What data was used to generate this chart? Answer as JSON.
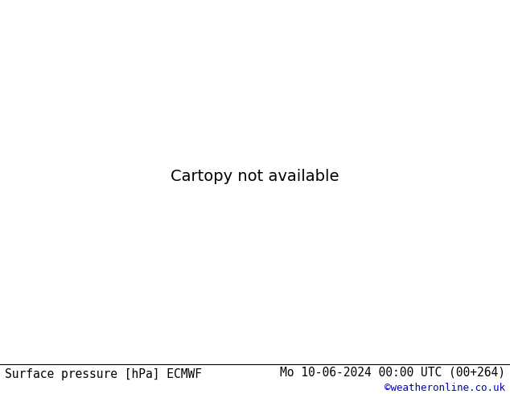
{
  "title_left": "Surface pressure [hPa] ECMWF",
  "title_right": "Mo 10-06-2024 00:00 UTC (00+264)",
  "credit": "©weatheronline.co.uk",
  "ocean_color": "#d0d0d0",
  "land_color": "#c8e8a0",
  "coast_color": "#888888",
  "coast_lw": 0.4,
  "footer_text_color": "#000000",
  "credit_color": "#0000bb",
  "title_fontsize": 10.5,
  "credit_fontsize": 9,
  "black_contour_color": "#000000",
  "blue_contour_color": "#0000cc",
  "red_contour_color": "#cc0000",
  "contour_lw": 1.3,
  "label_fontsize": 7.5,
  "map_extent": [
    -45,
    45,
    27,
    72
  ]
}
